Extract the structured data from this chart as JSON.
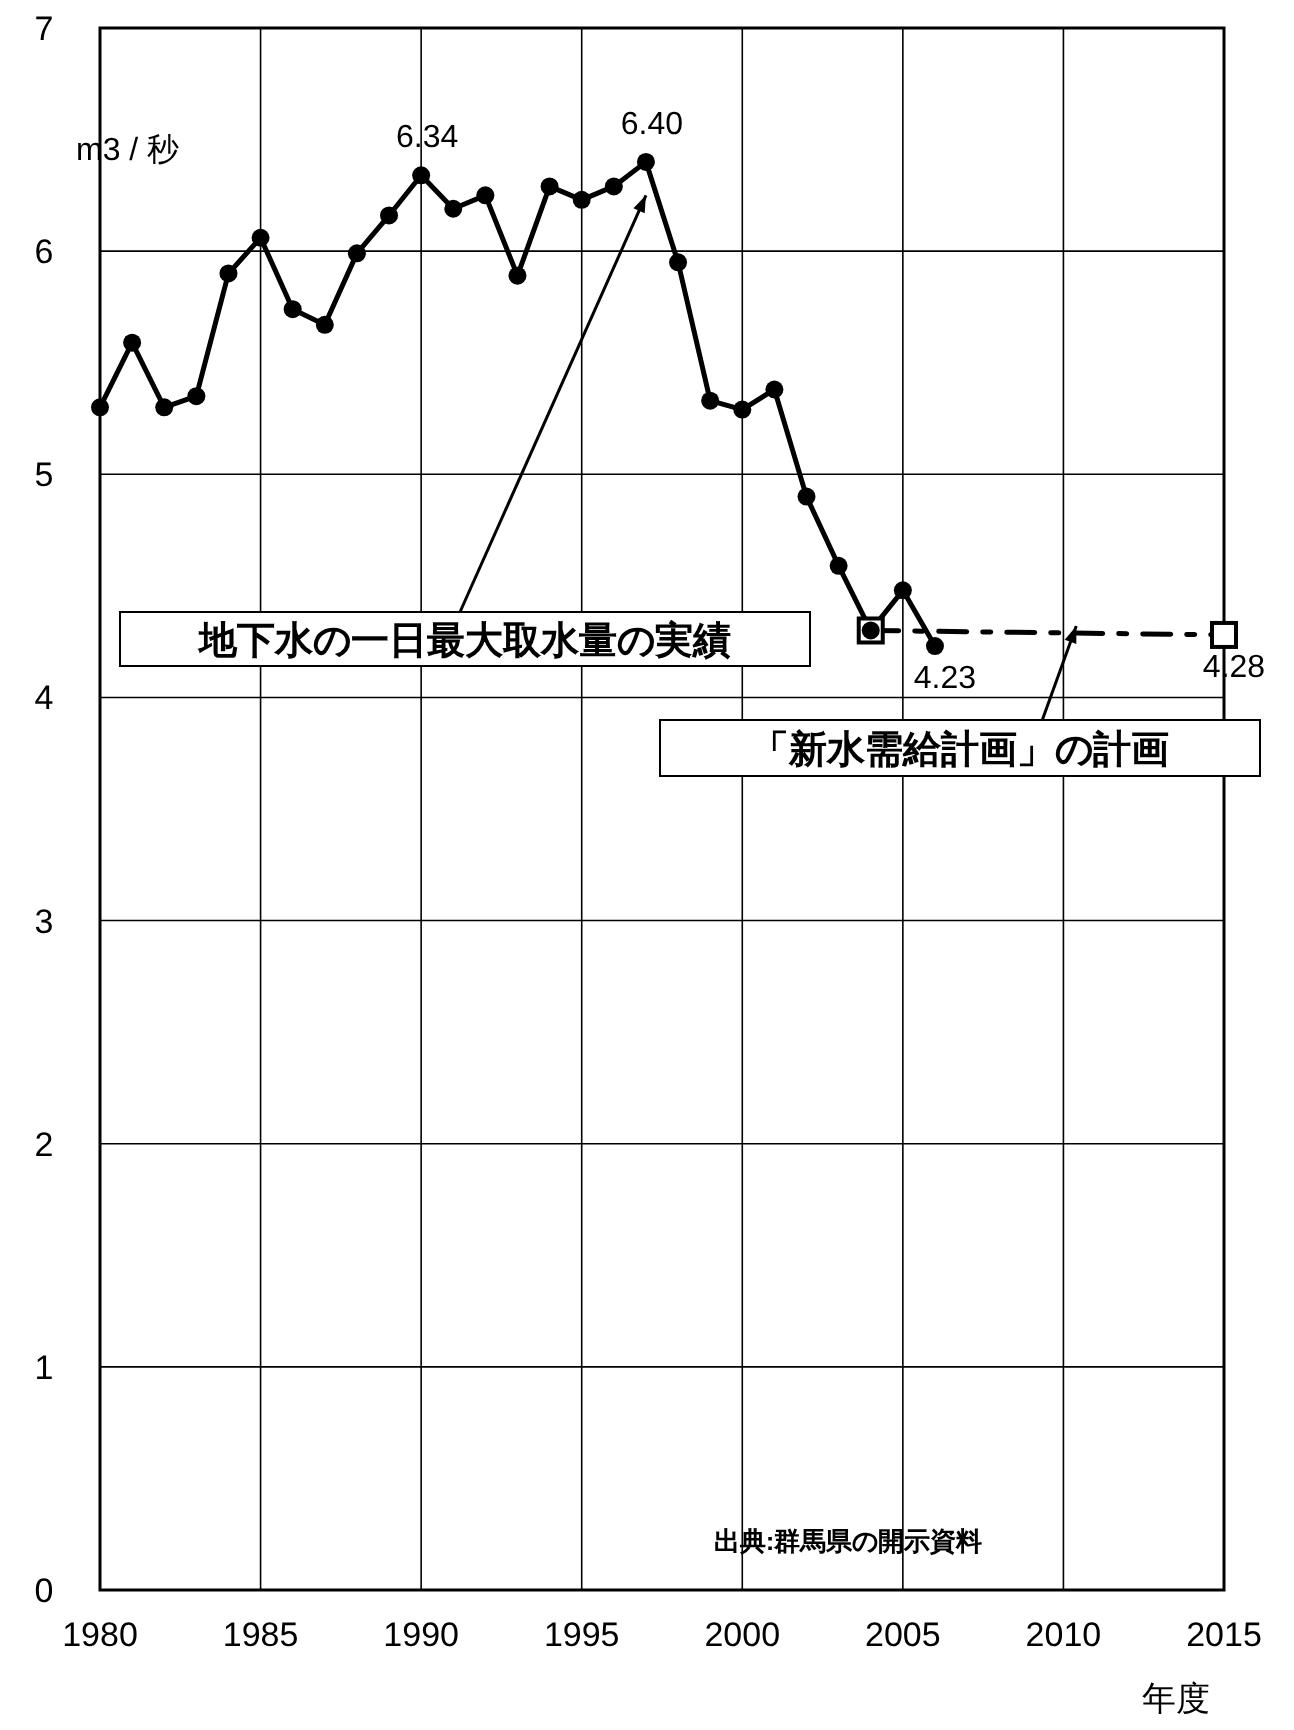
{
  "chart_data": {
    "type": "line",
    "ylabel": "m3 / 秒",
    "xlabel": "年度",
    "x": [
      1980,
      1981,
      1982,
      1983,
      1984,
      1985,
      1986,
      1987,
      1988,
      1989,
      1990,
      1991,
      1992,
      1993,
      1994,
      1995,
      1996,
      1997,
      1998,
      1999,
      2000,
      2001,
      2002,
      2003,
      2004,
      2005,
      2006
    ],
    "series": [
      {
        "color": "#000000",
        "marker": "circle",
        "line_style": "solid",
        "values": [
          5.3,
          5.59,
          5.3,
          5.35,
          5.9,
          6.06,
          5.74,
          5.67,
          5.99,
          6.16,
          6.34,
          6.19,
          6.25,
          5.89,
          6.29,
          6.23,
          6.29,
          6.4,
          5.95,
          5.33,
          5.29,
          5.38,
          4.9,
          4.59,
          4.3,
          4.48,
          4.23
        ],
        "value_labels": [
          null,
          null,
          null,
          null,
          null,
          null,
          null,
          null,
          null,
          null,
          "6.34",
          null,
          null,
          null,
          null,
          null,
          null,
          "6.40",
          null,
          null,
          null,
          null,
          null,
          null,
          null,
          null,
          "4.23"
        ]
      },
      {
        "color": "#000000",
        "marker": "square",
        "line_style": "dashed",
        "x": [
          2004,
          2015
        ],
        "values": [
          4.3,
          4.28
        ],
        "value_labels": [
          null,
          "4.28"
        ]
      }
    ],
    "xlim": [
      1980,
      2015
    ],
    "xticks": [
      1980,
      1985,
      1990,
      1995,
      2000,
      2005,
      2010,
      2015
    ],
    "ylim": [
      0,
      7
    ],
    "yticks": [
      0,
      1,
      2,
      3,
      4,
      5,
      6,
      7
    ],
    "grid": true,
    "annotations": [
      {
        "text": "地下水の一日最大取水量の実績",
        "x": 1997,
        "y": 6.25
      },
      {
        "text": "「新水需給計画」の計画",
        "x": 2010.4,
        "y": 4.32
      },
      "出典:群馬県の開示資料"
    ]
  }
}
